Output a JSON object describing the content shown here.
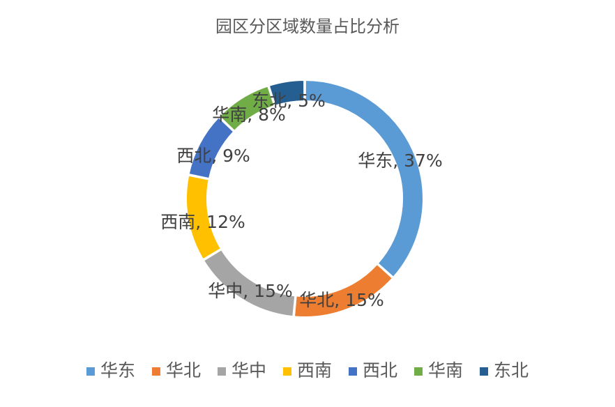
{
  "chart_data": {
    "type": "pie",
    "donut": true,
    "title": "园区分区域数量占比分析",
    "categories": [
      "华东",
      "华北",
      "华中",
      "西南",
      "西北",
      "华南",
      "东北"
    ],
    "values": [
      37,
      15,
      15,
      12,
      9,
      8,
      5
    ],
    "unit": "%",
    "data_labels": [
      "华东, 37%",
      "华北, 15%",
      "华中, 15%",
      "西南, 12%",
      "西北, 9%",
      "华南, 8%",
      "东北, 5%"
    ],
    "colors": [
      "#5B9BD5",
      "#ED7D31",
      "#A5A5A5",
      "#FFC000",
      "#4472C4",
      "#70AD47",
      "#255E91"
    ],
    "legend": {
      "position": "bottom",
      "entries": [
        "华东",
        "华北",
        "华中",
        "西南",
        "西北",
        "华南",
        "东北"
      ]
    }
  }
}
